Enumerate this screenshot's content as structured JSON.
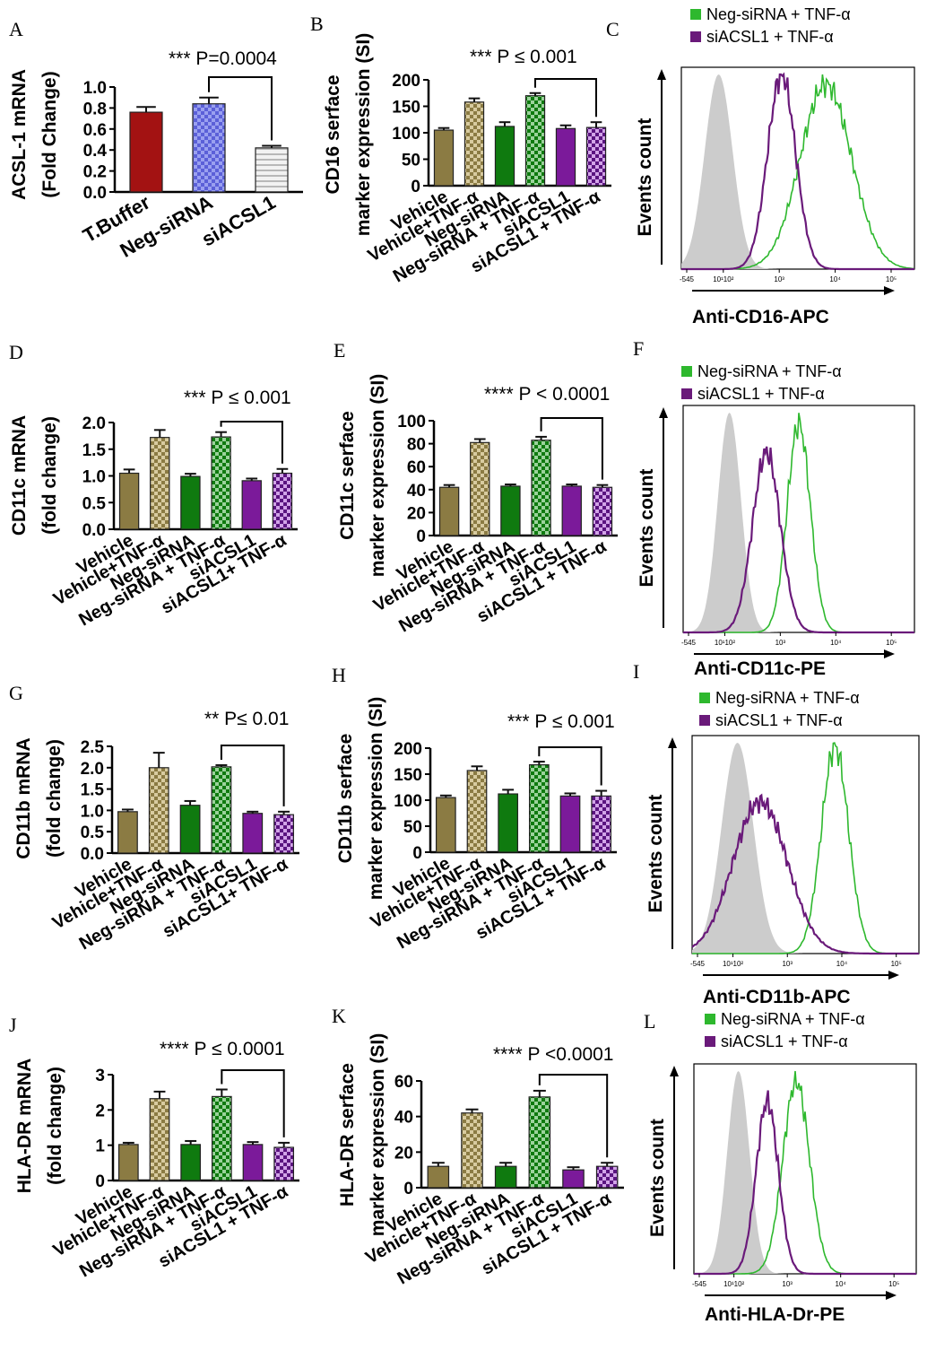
{
  "colors": {
    "vehicle": "#8b7b43",
    "tnf": "#8b7b43",
    "neg": "#0f7a0f",
    "negtnf": "#0f7a0f",
    "siacsl": "#7b1a9a",
    "siacsltnf": "#6a1a8a",
    "hist_ctrl": "#cccccc",
    "hist_neg": "#2eb82e",
    "hist_si": "#6a1a7a",
    "a_tbuffer": "#a31212",
    "a_neg": "#6a6fe0",
    "a_si": "#dcdcdc"
  },
  "chart_data": [
    {
      "panel": "A",
      "type": "bar",
      "ylabel": [
        "ACSL-1 mRNA",
        "(Fold  Change)"
      ],
      "categories": [
        "T.Buffer",
        "Neg-siRNA",
        "siACSL1"
      ],
      "values": [
        0.76,
        0.84,
        0.42
      ],
      "errors": [
        0.05,
        0.06,
        0.02
      ],
      "ylim": [
        0,
        1.0
      ],
      "yticks": [
        "0.0",
        "0.2",
        "0.4",
        "0.6",
        "0.8",
        "1.0"
      ],
      "annotation": "*** P=0.0004",
      "bracket": [
        1,
        2
      ]
    },
    {
      "panel": "B",
      "type": "bar",
      "ylabel": [
        "CD16 serface",
        "marker expression (SI)"
      ],
      "categories": [
        "Vehicle",
        "Vehicle+TNF-α",
        "Neg-siRNA",
        "Neg-siRNA + TNF-α",
        "siACSL1",
        "siACSL1 + TNF-α"
      ],
      "values": [
        105,
        158,
        112,
        170,
        108,
        110
      ],
      "errors": [
        4,
        7,
        8,
        5,
        6,
        10
      ],
      "ylim": [
        0,
        200
      ],
      "yticks": [
        "0",
        "50",
        "100",
        "150",
        "200"
      ],
      "annotation": "*** P ≤ 0.001",
      "bracket": [
        3,
        5
      ]
    },
    {
      "panel": "D",
      "type": "bar",
      "ylabel": [
        "CD11c mRNA",
        "(fold change)"
      ],
      "categories": [
        "Vehicle",
        "Vehicle+TNF-α",
        "Neg-siRNA",
        "Neg-siRNA + TNF-α",
        "siACSL1",
        "siACSL1+ TNF-α"
      ],
      "values": [
        1.05,
        1.72,
        0.99,
        1.73,
        0.91,
        1.05
      ],
      "errors": [
        0.07,
        0.14,
        0.05,
        0.09,
        0.04,
        0.08
      ],
      "ylim": [
        0,
        2.0
      ],
      "yticks": [
        "0.0",
        "0.5",
        "1.0",
        "1.5",
        "2.0"
      ],
      "annotation": "*** P ≤ 0.001",
      "bracket": [
        3,
        5
      ]
    },
    {
      "panel": "E",
      "type": "bar",
      "ylabel": [
        "CD11c serface",
        "marker expression (SI)"
      ],
      "categories": [
        "Vehicle",
        "Vehicle+TNF-α",
        "Neg-siRNA",
        "Neg-siRNA + TNF-α",
        "siACSL1",
        "siACSL1 + TNF-α"
      ],
      "values": [
        42,
        81,
        43,
        83,
        43,
        42
      ],
      "errors": [
        2,
        3,
        1.5,
        3,
        1.5,
        2
      ],
      "ylim": [
        0,
        100
      ],
      "yticks": [
        "0",
        "20",
        "40",
        "60",
        "80",
        "100"
      ],
      "annotation": "**** P < 0.0001",
      "bracket": [
        3,
        5
      ]
    },
    {
      "panel": "G",
      "type": "bar",
      "ylabel": [
        "CD11b mRNA",
        "(fold change)"
      ],
      "categories": [
        "Vehicle",
        "Vehicle+TNF-α",
        "Neg-siRNA",
        "Neg-siRNA + TNF-α",
        "siACSL1",
        "siACSL1+ TNF-α"
      ],
      "values": [
        0.97,
        2.0,
        1.12,
        2.02,
        0.93,
        0.9
      ],
      "errors": [
        0.05,
        0.35,
        0.1,
        0.04,
        0.04,
        0.07
      ],
      "ylim": [
        0,
        2.5
      ],
      "yticks": [
        "0.0",
        "0.5",
        "1.0",
        "1.5",
        "2.0",
        "2.5"
      ],
      "annotation": "** P≤ 0.01",
      "bracket": [
        3,
        5
      ]
    },
    {
      "panel": "H",
      "type": "bar",
      "ylabel": [
        "CD11b serface",
        "marker expression (SI)"
      ],
      "categories": [
        "Vehicle",
        "Vehicle+TNF-α",
        "Neg-siRNA",
        "Neg-siRNA + TNF-α",
        "siACSL1",
        "siACSL1 + TNF-α"
      ],
      "values": [
        105,
        157,
        112,
        168,
        108,
        108
      ],
      "errors": [
        4,
        8,
        8,
        6,
        5,
        10
      ],
      "ylim": [
        0,
        200
      ],
      "yticks": [
        "0",
        "50",
        "100",
        "150",
        "200"
      ],
      "annotation": "*** P ≤ 0.001",
      "bracket": [
        3,
        5
      ]
    },
    {
      "panel": "J",
      "type": "bar",
      "ylabel": [
        "HLA-DR mRNA",
        "(fold change)"
      ],
      "categories": [
        "Vehicle",
        "Vehicle+TNF-α",
        "Neg-siRNA",
        "Neg-siRNA + TNF-α",
        "siACSL1",
        "siACSL1 + TNF-α"
      ],
      "values": [
        1.02,
        2.32,
        1.02,
        2.38,
        1.02,
        0.94
      ],
      "errors": [
        0.05,
        0.2,
        0.1,
        0.2,
        0.07,
        0.13
      ],
      "ylim": [
        0,
        3
      ],
      "yticks": [
        "0",
        "1",
        "2",
        "3"
      ],
      "annotation": "**** P ≤ 0.0001",
      "bracket": [
        3,
        5
      ]
    },
    {
      "panel": "K",
      "type": "bar",
      "ylabel": [
        "HLA-DR serface",
        "marker expression (SI)"
      ],
      "categories": [
        "Vehicle",
        "Vehicle+TNF-α",
        "Neg-siRNA",
        "Neg-siRNA + TNF-α",
        "siACSL1",
        "siACSL1 + TNF-α"
      ],
      "values": [
        12,
        42,
        12,
        51,
        10,
        12
      ],
      "errors": [
        2,
        2,
        2,
        3.5,
        1.5,
        2
      ],
      "ylim": [
        0,
        60
      ],
      "yticks": [
        "0",
        "20",
        "40",
        "60"
      ],
      "annotation": "**** P <0.0001",
      "bracket": [
        3,
        5
      ]
    }
  ],
  "histograms": [
    {
      "panel": "C",
      "xlabel": "Anti-CD16-APC",
      "ylabel": "Events count",
      "legend": [
        "Neg-siRNA + TNF-α",
        "siACSL1 + TNF-α"
      ],
      "ticks": [
        "-545",
        "10¹10²",
        "10³",
        "10⁴",
        "10⁵"
      ]
    },
    {
      "panel": "F",
      "xlabel": "Anti-CD11c-PE",
      "ylabel": "Events count",
      "legend": [
        "Neg-siRNA + TNF-α",
        "siACSL1 + TNF-α"
      ],
      "ticks": [
        "-545",
        "10¹10²",
        "10³",
        "10⁴",
        "10⁵"
      ]
    },
    {
      "panel": "I",
      "xlabel": "Anti-CD11b-APC",
      "ylabel": "Events count",
      "legend": [
        "Neg-siRNA + TNF-α",
        "siACSL1 + TNF-α"
      ],
      "ticks": [
        "-545",
        "10¹10²",
        "10³",
        "10⁴",
        "10⁵"
      ]
    },
    {
      "panel": "L",
      "xlabel": "Anti-HLA-Dr-PE",
      "ylabel": "Events count",
      "legend": [
        "Neg-siRNA + TNF-α",
        "siACSL1 + TNF-α"
      ],
      "ticks": [
        "-545",
        "10¹10²",
        "10³",
        "10⁴",
        "10⁵"
      ]
    }
  ]
}
